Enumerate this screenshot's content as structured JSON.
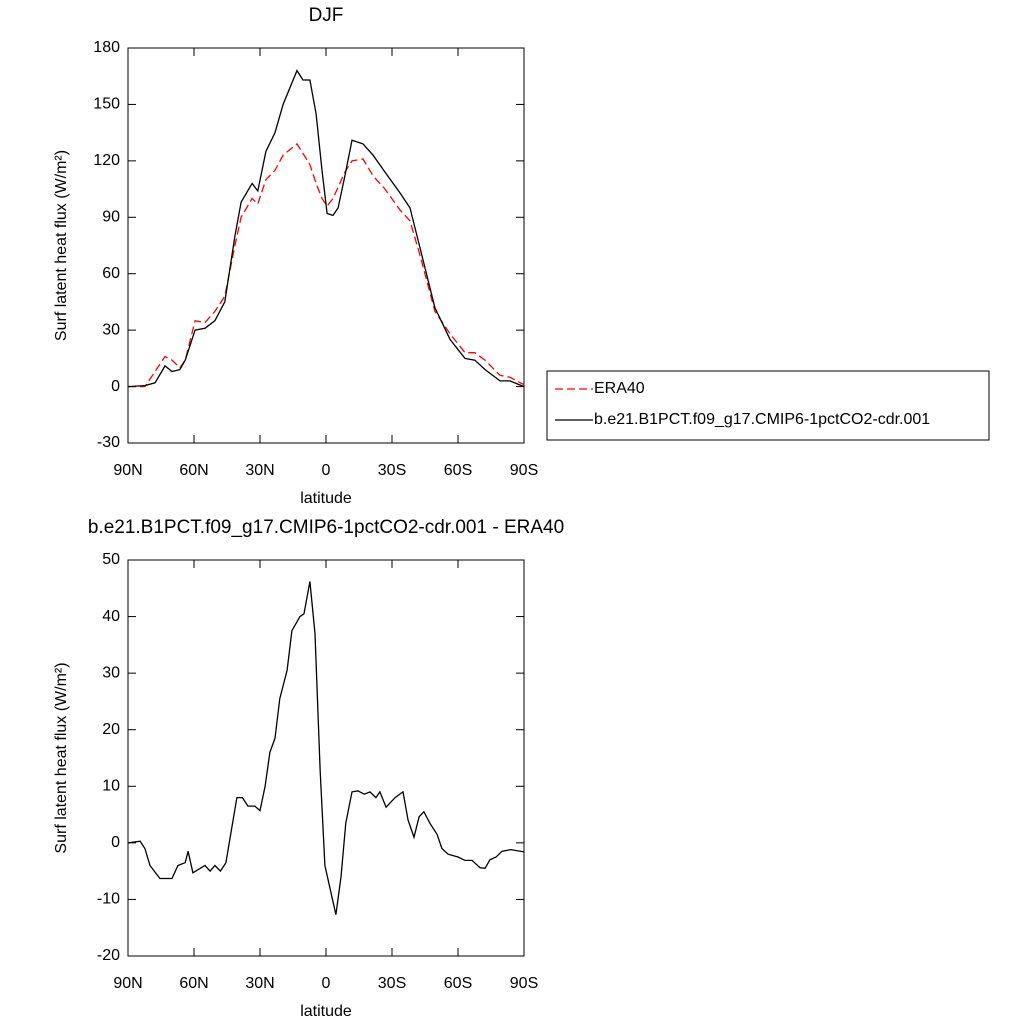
{
  "chart_data": [
    {
      "type": "line",
      "title": "DJF",
      "x_label": "latitude",
      "y_label": "Surf latent heat flux (W/m²)",
      "xlim": [
        90,
        -90
      ],
      "xticks": [
        {
          "value": 90,
          "label": "90N"
        },
        {
          "value": 60,
          "label": "60N"
        },
        {
          "value": 30,
          "label": "30N"
        },
        0,
        {
          "value": -30,
          "label": "30S"
        },
        {
          "value": -60,
          "label": "60S"
        },
        {
          "value": -90,
          "label": "90S"
        }
      ],
      "ylim": [
        -30,
        180
      ],
      "yticks": [
        -30,
        0,
        30,
        60,
        90,
        120,
        150,
        180
      ],
      "legend": "right",
      "x": [
        90,
        82.3,
        77.7,
        73.2,
        70,
        66.4,
        64,
        59.5,
        55,
        50.5,
        46,
        41.4,
        38.6,
        33.6,
        31,
        27.3,
        23.2,
        19.5,
        13.2,
        10.5,
        7.3,
        4.5,
        1.8,
        -0.5,
        -3.2,
        -5.5,
        -8.6,
        -11.8,
        -16.8,
        -21.4,
        -26.8,
        -33.6,
        -38.2,
        -42.7,
        -49.5,
        -56.4,
        -63.2,
        -67.7,
        -72.3,
        -79.1,
        -83.6,
        -90
      ],
      "series": [
        {
          "name": "ERA40",
          "color": "#ff0000",
          "dashed": true,
          "values": [
            0,
            0,
            8,
            16,
            14,
            10,
            14,
            35,
            34,
            40,
            48,
            75,
            90,
            100,
            97,
            110,
            115,
            123,
            129,
            124,
            118,
            108,
            100,
            96,
            100,
            106,
            114,
            120,
            121,
            112,
            105,
            94,
            88,
            70,
            40,
            28,
            18,
            18,
            14,
            6,
            5,
            1
          ]
        },
        {
          "name": "b.e21.B1PCT.f09_g17.CMIP6-1pctCO2-cdr.001",
          "color": "#000000",
          "dashed": false,
          "values": [
            0,
            0.5,
            2,
            11,
            8,
            9,
            14,
            30,
            31,
            35,
            45,
            80,
            98,
            108,
            104,
            125,
            135,
            150,
            168,
            163,
            163,
            145,
            115,
            92,
            91,
            95,
            112,
            131,
            129,
            123,
            114,
            103,
            95,
            74,
            42,
            25,
            15,
            14,
            9,
            3,
            3,
            0
          ]
        }
      ]
    },
    {
      "type": "line",
      "title": "b.e21.B1PCT.f09_g17.CMIP6-1pctCO2-cdr.001 - ERA40",
      "x_label": "latitude",
      "y_label": "Surf latent heat flux (W/m²)",
      "xlim": [
        90,
        -90
      ],
      "xticks": [
        {
          "value": 90,
          "label": "90N"
        },
        {
          "value": 60,
          "label": "60N"
        },
        {
          "value": 30,
          "label": "30N"
        },
        0,
        {
          "value": -30,
          "label": "30S"
        },
        {
          "value": -60,
          "label": "60S"
        },
        {
          "value": -90,
          "label": "90S"
        }
      ],
      "ylim": [
        -20,
        50
      ],
      "yticks": [
        -20,
        -10,
        0,
        10,
        20,
        30,
        40,
        50
      ],
      "color": "#000000",
      "x": [
        90,
        84.5,
        82.3,
        80,
        75.5,
        70,
        67.3,
        64,
        62.7,
        60.5,
        55,
        52.7,
        50.5,
        48,
        45.5,
        42.7,
        40.5,
        38,
        35.5,
        32.3,
        30,
        27.7,
        25.5,
        23.2,
        21,
        17.7,
        15.5,
        11.8,
        10,
        7.3,
        5,
        2.7,
        0.5,
        -4.5,
        -6.8,
        -9,
        -11.8,
        -14.5,
        -17.3,
        -20,
        -22.7,
        -24.5,
        -27.3,
        -31.4,
        -35,
        -37.3,
        -40,
        -42.3,
        -44.5,
        -47.3,
        -50.5,
        -52.7,
        -55.5,
        -60,
        -63.2,
        -66.4,
        -70,
        -72.3,
        -74.5,
        -77.3,
        -80,
        -84,
        -90
      ],
      "values": [
        0,
        0.3,
        -1,
        -4,
        -6.3,
        -6.3,
        -4,
        -3.5,
        -1.5,
        -5.3,
        -4,
        -5,
        -4,
        -5,
        -3.5,
        3,
        8,
        8,
        6.5,
        6.5,
        5.7,
        10,
        16,
        18.5,
        25.5,
        30.5,
        37.5,
        40,
        40.5,
        46.2,
        37,
        13,
        -4,
        -12.7,
        -6,
        3.5,
        9,
        9.2,
        8.6,
        9,
        8,
        9,
        6.3,
        8,
        9,
        4,
        1,
        4.6,
        5.5,
        3.4,
        1.5,
        -1,
        -2,
        -2.5,
        -3.1,
        -3.1,
        -4.4,
        -4.5,
        -3,
        -2.5,
        -1.5,
        -1.2,
        -1.6
      ]
    }
  ]
}
